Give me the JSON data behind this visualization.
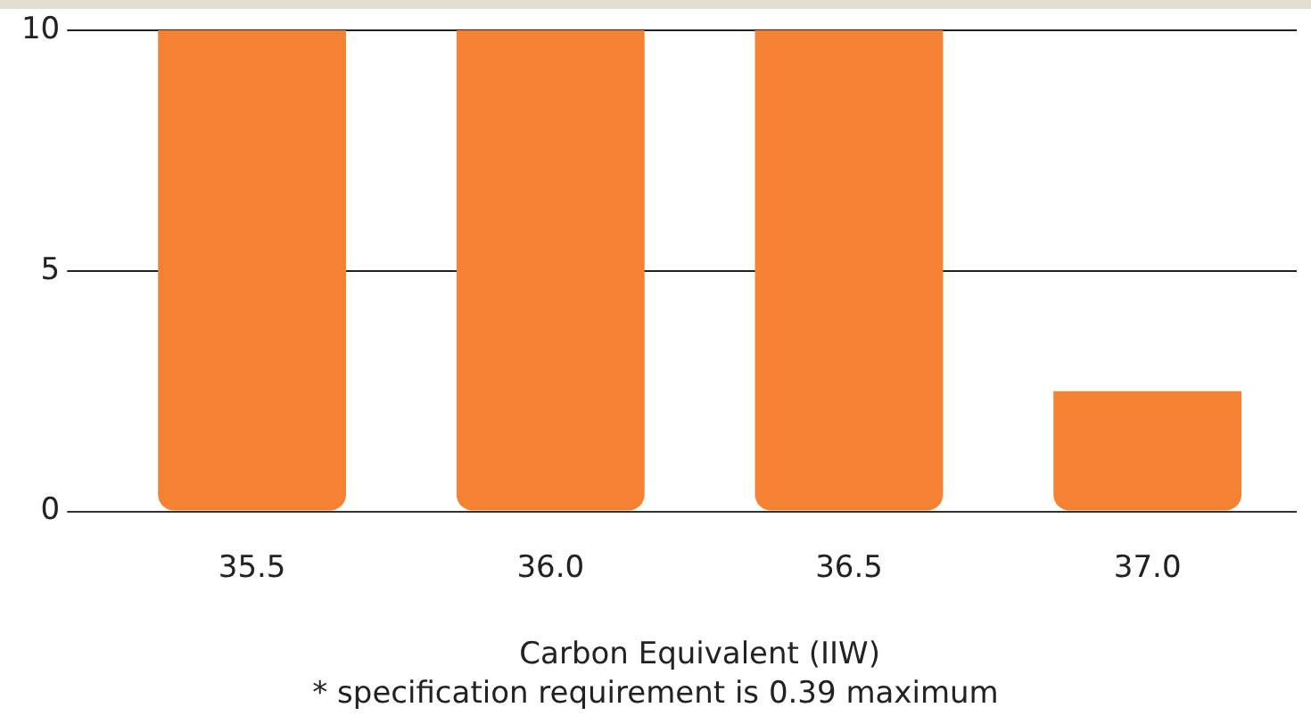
{
  "chart_data": {
    "type": "bar",
    "xlabel": "Carbon Equivalent (IIW)",
    "annotations": [
      "* specification requirement is 0.39 maximum"
    ],
    "categories": [
      "35.5",
      "36.0",
      "36.5",
      "37.0"
    ],
    "values": [
      10,
      10,
      10,
      2.5
    ],
    "color": "#f58233",
    "ylim": [
      0,
      10
    ],
    "yticks": [
      0,
      5,
      10
    ],
    "grid": "y",
    "legend": false
  }
}
